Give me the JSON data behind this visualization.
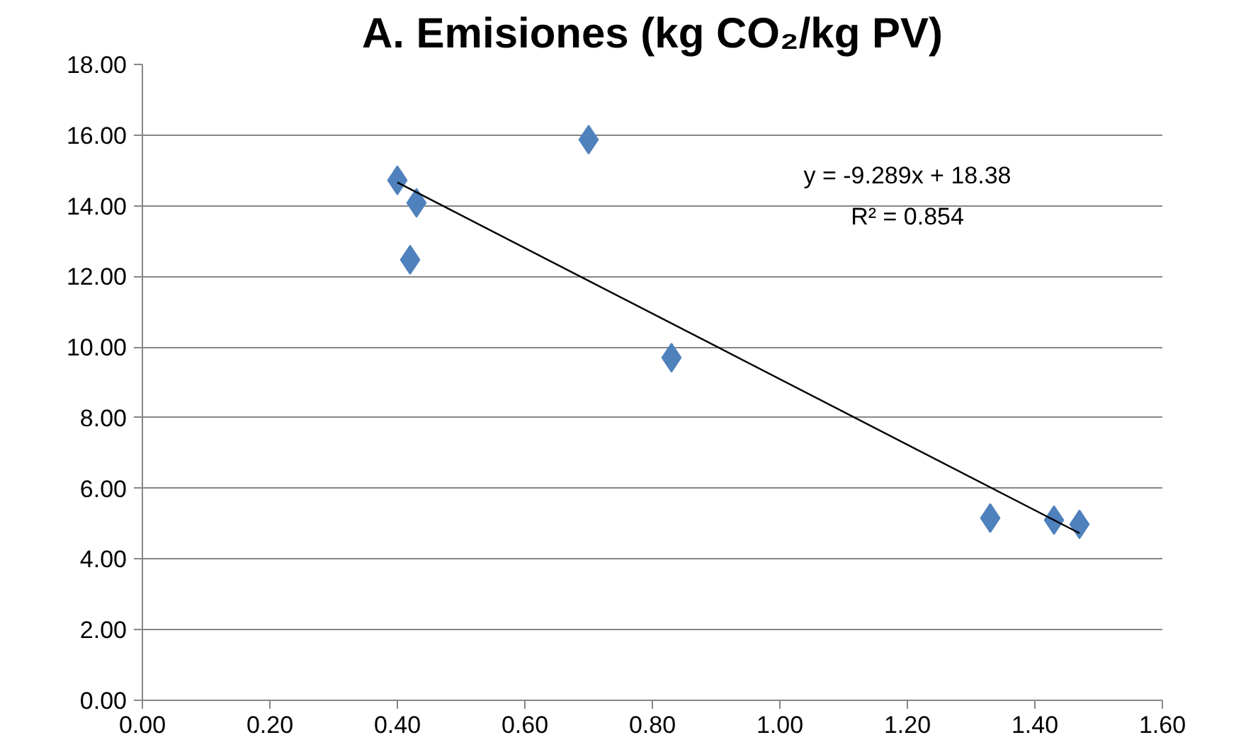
{
  "chart_data": {
    "type": "scatter",
    "title": "A. Emisiones (kg CO₂/kg PV)",
    "x": [
      0.4,
      0.43,
      0.42,
      0.7,
      0.83,
      1.33,
      1.43,
      1.47
    ],
    "series": [
      {
        "color": "#4f81bd",
        "marker": "diamond",
        "values": [
          14.72,
          14.08,
          12.47,
          15.87,
          9.7,
          5.16,
          5.1,
          4.98
        ]
      },
      {
        "type": "line",
        "color": "#000000",
        "x": [
          0.4,
          1.47
        ],
        "values": [
          14.66,
          4.73
        ]
      }
    ],
    "annotations": [
      "y = -9.289x + 18.38",
      "R² = 0.854"
    ],
    "xlim": [
      0,
      1.6
    ],
    "xticks": [
      {
        "value": 0,
        "label": "0.00"
      },
      {
        "value": 0.2,
        "label": "0.20"
      },
      {
        "value": 0.4,
        "label": "0.40"
      },
      {
        "value": 0.6,
        "label": "0.60"
      },
      {
        "value": 0.8,
        "label": "0.80"
      },
      {
        "value": 1.0,
        "label": "1.00"
      },
      {
        "value": 1.2,
        "label": "1.20"
      },
      {
        "value": 1.4,
        "label": "1.40"
      },
      {
        "value": 1.6,
        "label": "1.60"
      }
    ],
    "ylim": [
      0,
      18
    ],
    "yticks": [
      {
        "value": 0,
        "label": "0.00"
      },
      {
        "value": 2,
        "label": "2.00"
      },
      {
        "value": 4,
        "label": "4.00"
      },
      {
        "value": 6,
        "label": "6.00"
      },
      {
        "value": 8,
        "label": "8.00"
      },
      {
        "value": 10,
        "label": "10.00"
      },
      {
        "value": 12,
        "label": "12.00"
      },
      {
        "value": 14,
        "label": "14.00"
      },
      {
        "value": 16,
        "label": "16.00"
      },
      {
        "value": 18,
        "label": "18.00"
      }
    ],
    "grid": "y"
  }
}
